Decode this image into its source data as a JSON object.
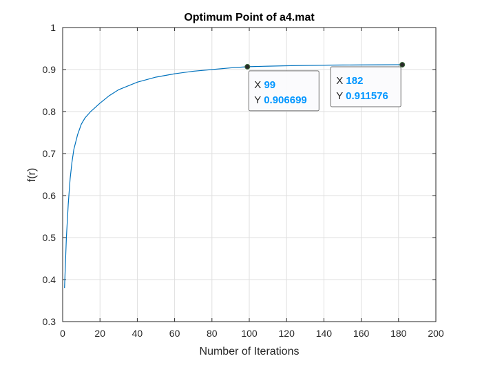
{
  "chart_data": {
    "type": "line",
    "title": "Optimum Point of a4.mat",
    "xlabel": "Number of Iterations",
    "ylabel": "f(r)",
    "xlim": [
      0,
      200
    ],
    "ylim": [
      0.3,
      1
    ],
    "x_ticks": [
      "0",
      "20",
      "40",
      "60",
      "80",
      "100",
      "120",
      "140",
      "160",
      "180",
      "200"
    ],
    "x_tick_values": [
      0,
      20,
      40,
      60,
      80,
      100,
      120,
      140,
      160,
      180,
      200
    ],
    "y_ticks": [
      "0.3",
      "0.4",
      "0.5",
      "0.6",
      "0.7",
      "0.8",
      "0.9",
      "1"
    ],
    "y_tick_values": [
      0.3,
      0.4,
      0.5,
      0.6,
      0.7,
      0.8,
      0.9,
      1.0
    ],
    "grid": true,
    "series": [
      {
        "color": "#0072BD",
        "x": [
          1,
          2,
          3,
          4,
          5,
          6,
          8,
          10,
          12,
          15,
          20,
          25,
          30,
          40,
          50,
          60,
          70,
          80,
          90,
          99,
          110,
          120,
          130,
          140,
          150,
          160,
          170,
          182
        ],
        "y": [
          0.38,
          0.5,
          0.58,
          0.64,
          0.68,
          0.71,
          0.745,
          0.77,
          0.785,
          0.8,
          0.82,
          0.838,
          0.852,
          0.87,
          0.882,
          0.89,
          0.896,
          0.9,
          0.904,
          0.9067,
          0.908,
          0.909,
          0.9098,
          0.9104,
          0.9108,
          0.9111,
          0.9113,
          0.9116
        ]
      }
    ],
    "datatips": [
      {
        "x_key": "X",
        "x_value": "99",
        "y_key": "Y",
        "y_value": "0.906699",
        "x": 99,
        "y": 0.906699
      },
      {
        "x_key": "X",
        "x_value": "182",
        "y_key": "Y",
        "y_value": "0.911576",
        "x": 182,
        "y": 0.911576
      }
    ],
    "datatip_value_color": "#0096FF"
  }
}
